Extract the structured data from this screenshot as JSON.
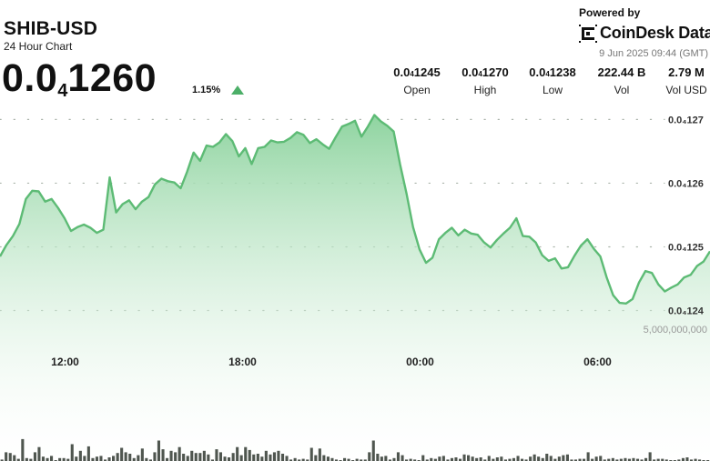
{
  "header": {
    "symbol": "SHIB-USD",
    "subtitle": "24 Hour Chart",
    "price_lead": "0.0",
    "price_zeros": "4",
    "price_rest": "1260",
    "change": "1.15%",
    "change_icon": "up-triangle-icon",
    "change_color": "#4caf68"
  },
  "branding": {
    "powered_by": "Powered by",
    "brand": "CoinDesk Data",
    "logo_icon": "coindesk-logo-icon",
    "timestamp": "9 Jun 2025 09:44 (GMT)"
  },
  "stats": [
    {
      "lead": "0.0",
      "zeros": "4",
      "rest": "1245",
      "label": "Open"
    },
    {
      "lead": "0.0",
      "zeros": "4",
      "rest": "1270",
      "label": "High"
    },
    {
      "lead": "0.0",
      "zeros": "4",
      "rest": "1238",
      "label": "Low"
    },
    {
      "plain": "222.44 B",
      "label": "Vol"
    },
    {
      "plain": "2.79 M",
      "label": "Vol USD"
    }
  ],
  "chart_data": {
    "type": "area",
    "price_decimal_shift": 4,
    "x_tick_labels": [
      "12:00",
      "18:00",
      "00:00",
      "06:00"
    ],
    "x_tick_hours": [
      2.2,
      8.2,
      14.2,
      20.2
    ],
    "x_range_hours": [
      0,
      24
    ],
    "price_axis": {
      "range": [
        1.2385,
        1.2712
      ],
      "ticks": [
        {
          "value": 1.27,
          "label": "0.0₄127"
        },
        {
          "value": 1.26,
          "label": "0.0₄126"
        },
        {
          "value": 1.25,
          "label": "0.0₄125"
        },
        {
          "value": 1.24,
          "label": "0.0₄124"
        }
      ]
    },
    "volume_axis": {
      "range": [
        0,
        5600000000
      ],
      "ticks": [
        {
          "value": 5000000000,
          "label": "5,000,000,000"
        }
      ]
    },
    "price_series": [
      1.2485,
      1.2503,
      1.2517,
      1.2536,
      1.2575,
      1.2588,
      1.2587,
      1.2571,
      1.2575,
      1.2561,
      1.2545,
      1.2525,
      1.2531,
      1.2535,
      1.253,
      1.2522,
      1.2527,
      1.2609,
      1.2554,
      1.2567,
      1.2573,
      1.2559,
      1.2571,
      1.2578,
      1.2598,
      1.2607,
      1.2603,
      1.2601,
      1.2592,
      1.2618,
      1.2648,
      1.2635,
      1.2659,
      1.2657,
      1.2664,
      1.2677,
      1.2666,
      1.2642,
      1.2655,
      1.263,
      1.2655,
      1.2657,
      1.2667,
      1.2664,
      1.2665,
      1.2671,
      1.268,
      1.2676,
      1.2663,
      1.2669,
      1.2661,
      1.2654,
      1.2672,
      1.2689,
      1.2693,
      1.2698,
      1.2673,
      1.2689,
      1.2707,
      1.2697,
      1.269,
      1.2681,
      1.2629,
      1.2583,
      1.2531,
      1.2496,
      1.2475,
      1.2483,
      1.2512,
      1.2522,
      1.253,
      1.2518,
      1.2527,
      1.2521,
      1.2519,
      1.2507,
      1.2499,
      1.2511,
      1.2521,
      1.253,
      1.2545,
      1.2517,
      1.2516,
      1.2507,
      1.2487,
      1.2478,
      1.2482,
      1.2466,
      1.2468,
      1.2486,
      1.2502,
      1.2512,
      1.2497,
      1.2485,
      1.2452,
      1.2424,
      1.2412,
      1.2411,
      1.2418,
      1.2444,
      1.2462,
      1.2459,
      1.2441,
      1.243,
      1.2436,
      1.2441,
      1.2452,
      1.2456,
      1.247,
      1.2477,
      1.2493
    ],
    "volume_series": [
      0.1,
      0.6,
      0.55,
      0.4,
      0.15,
      1.5,
      0.2,
      0.15,
      0.6,
      0.95,
      0.3,
      0.2,
      0.35,
      0.05,
      0.2,
      0.2,
      0.15,
      1.15,
      0.3,
      0.7,
      0.35,
      1.0,
      0.2,
      0.3,
      0.35,
      0.1,
      0.25,
      0.35,
      0.55,
      0.9,
      0.6,
      0.5,
      0.2,
      0.4,
      0.85,
      0.2,
      0.1,
      0.6,
      1.4,
      0.8,
      0.2,
      0.7,
      0.6,
      0.95,
      0.5,
      0.35,
      0.7,
      0.55,
      0.55,
      0.7,
      0.45,
      0.1,
      0.8,
      0.6,
      0.3,
      0.25,
      0.55,
      0.95,
      0.4,
      0.95,
      0.75,
      0.45,
      0.5,
      0.3,
      0.7,
      0.45,
      0.6,
      0.7,
      0.5,
      0.35,
      0.1,
      0.2,
      0.1,
      0.15,
      0.1,
      0.9,
      0.4,
      0.85,
      0.4,
      0.3,
      0.2,
      0.1,
      0.05,
      0.2,
      0.15,
      0.05,
      0.15,
      0.1,
      0.1,
      0.6,
      1.4,
      0.5,
      0.3,
      0.35,
      0.1,
      0.2,
      0.6,
      0.4,
      0.1,
      0.15,
      0.1,
      0.05,
      0.4,
      0.1,
      0.2,
      0.15,
      0.3,
      0.35,
      0.1,
      0.2,
      0.25,
      0.15,
      0.45,
      0.4,
      0.3,
      0.2,
      0.25,
      0.1,
      0.35,
      0.15,
      0.25,
      0.3,
      0.1,
      0.15,
      0.2,
      0.35,
      0.15,
      0.1,
      0.3,
      0.45,
      0.3,
      0.2,
      0.5,
      0.35,
      0.15,
      0.3,
      0.4,
      0.45,
      0.1,
      0.1,
      0.15,
      0.15,
      0.6,
      0.15,
      0.3,
      0.35,
      0.1,
      0.15,
      0.2,
      0.1,
      0.15,
      0.2,
      0.15,
      0.2,
      0.15,
      0.1,
      0.2,
      0.6,
      0.1,
      0.15,
      0.15,
      0.1,
      0.05,
      0.05,
      0.1,
      0.2,
      0.25,
      0.1,
      0.15,
      0.1,
      0.05,
      0.05
    ],
    "volume_scale_hint": "heights in billions; selected spikes: 1.5, 1.4 etc. scaled later",
    "colors": {
      "line": "#5dbb75",
      "area_top": "#8fd4a0",
      "area_bottom": "#ffffff",
      "volume_bar": "#4f564f",
      "grid_dots": "#aab4aa"
    }
  }
}
